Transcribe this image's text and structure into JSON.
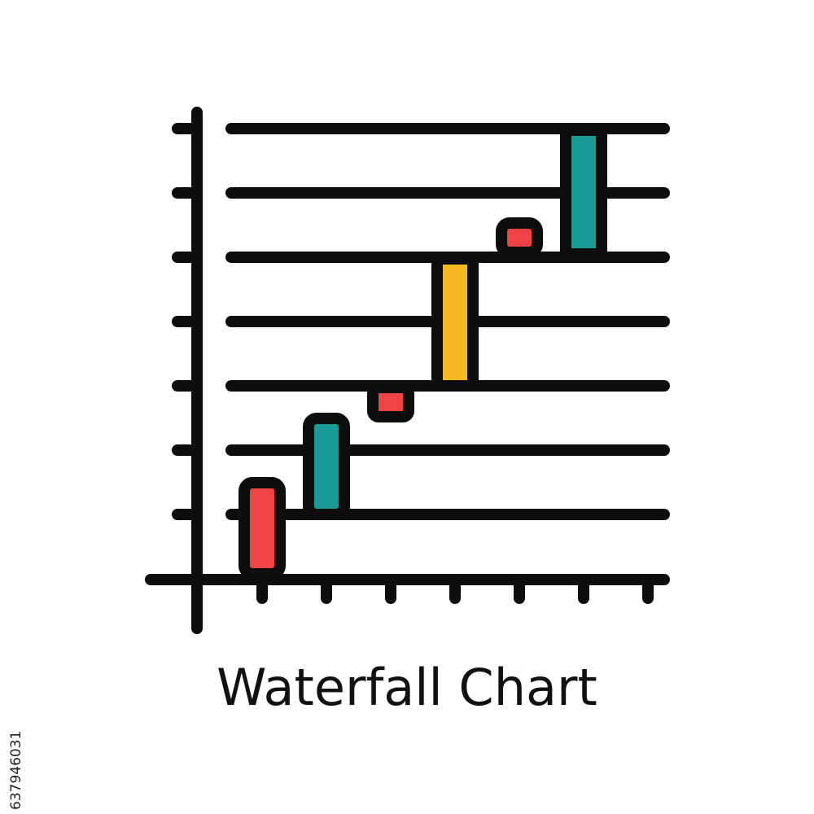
{
  "icon": {
    "name": "waterfall-chart-icon",
    "caption": "Waterfall Chart",
    "colors": {
      "stroke": "#0d0d0d",
      "red": "#ee4445",
      "teal": "#1b9a9a",
      "yellow": "#f5b921",
      "background": "#ffffff"
    },
    "bars": [
      {
        "name": "bar-red-1",
        "color": "red"
      },
      {
        "name": "bar-teal-1",
        "color": "teal"
      },
      {
        "name": "bar-red-2",
        "color": "red"
      },
      {
        "name": "bar-yellow",
        "color": "yellow"
      },
      {
        "name": "bar-red-3",
        "color": "red"
      },
      {
        "name": "bar-teal-2",
        "color": "teal"
      }
    ]
  },
  "stock_id": "637946031"
}
